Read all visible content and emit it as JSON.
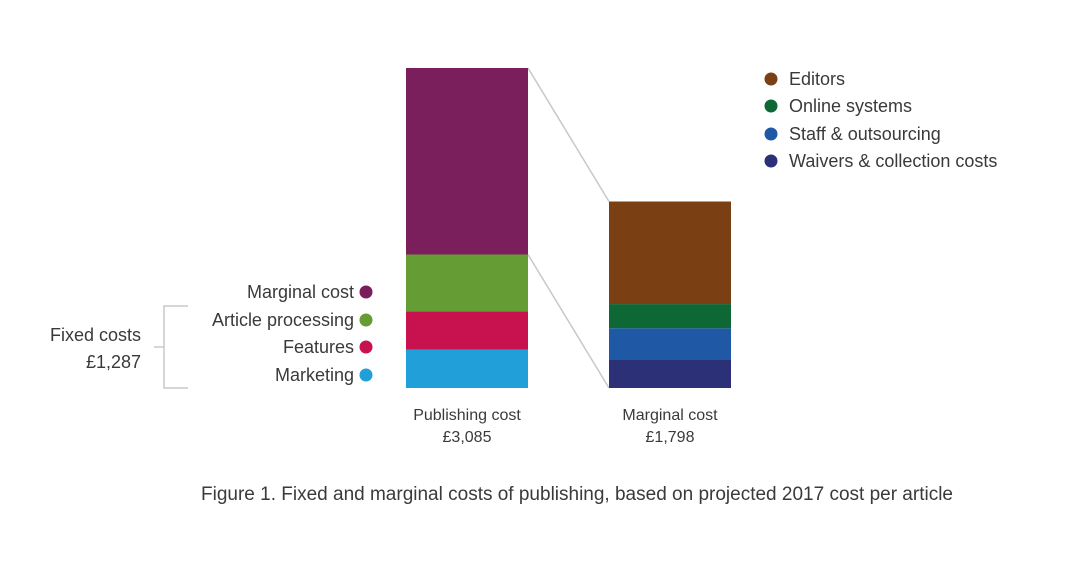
{
  "chart_data": {
    "type": "bar",
    "stacked": true,
    "caption": "Figure 1. Fixed and marginal costs of publishing, based on projected 2017 cost per article",
    "currency": "£",
    "bars": [
      {
        "label": "Publishing cost",
        "total_label": "£3,085",
        "total": 3085,
        "segments": [
          {
            "name": "Marketing",
            "value": 370,
            "color": "#219fd9"
          },
          {
            "name": "Features",
            "value": 370,
            "color": "#c8124f"
          },
          {
            "name": "Article processing",
            "value": 547,
            "color": "#659d34"
          },
          {
            "name": "Marginal cost",
            "value": 1798,
            "color": "#7a1f5c"
          }
        ]
      },
      {
        "label": "Marginal cost",
        "total_label": "£1,798",
        "total": 1798,
        "segments": [
          {
            "name": "Waivers & collection costs",
            "value": 270,
            "color": "#2b3077"
          },
          {
            "name": "Staff & outsourcing",
            "value": 306,
            "color": "#1f59a6"
          },
          {
            "name": "Online systems",
            "value": 233,
            "color": "#0e6836"
          },
          {
            "name": "Editors",
            "value": 989,
            "color": "#7b3f14"
          }
        ]
      }
    ],
    "left_legend": [
      {
        "name": "Marginal cost",
        "color": "#7a1f5c"
      },
      {
        "name": "Article processing",
        "color": "#659d34"
      },
      {
        "name": "Features",
        "color": "#c8124f"
      },
      {
        "name": "Marketing",
        "color": "#219fd9"
      }
    ],
    "right_legend": [
      {
        "name": "Editors",
        "color": "#7b3f14"
      },
      {
        "name": "Online systems",
        "color": "#0e6836"
      },
      {
        "name": "Staff & outsourcing",
        "color": "#1f59a6"
      },
      {
        "name": "Waivers & collection costs",
        "color": "#2b3077"
      }
    ],
    "fixed_costs": {
      "label": "Fixed costs",
      "value_label": "£1,287",
      "value": 1287
    },
    "connector_color": "#c8c8c8"
  }
}
